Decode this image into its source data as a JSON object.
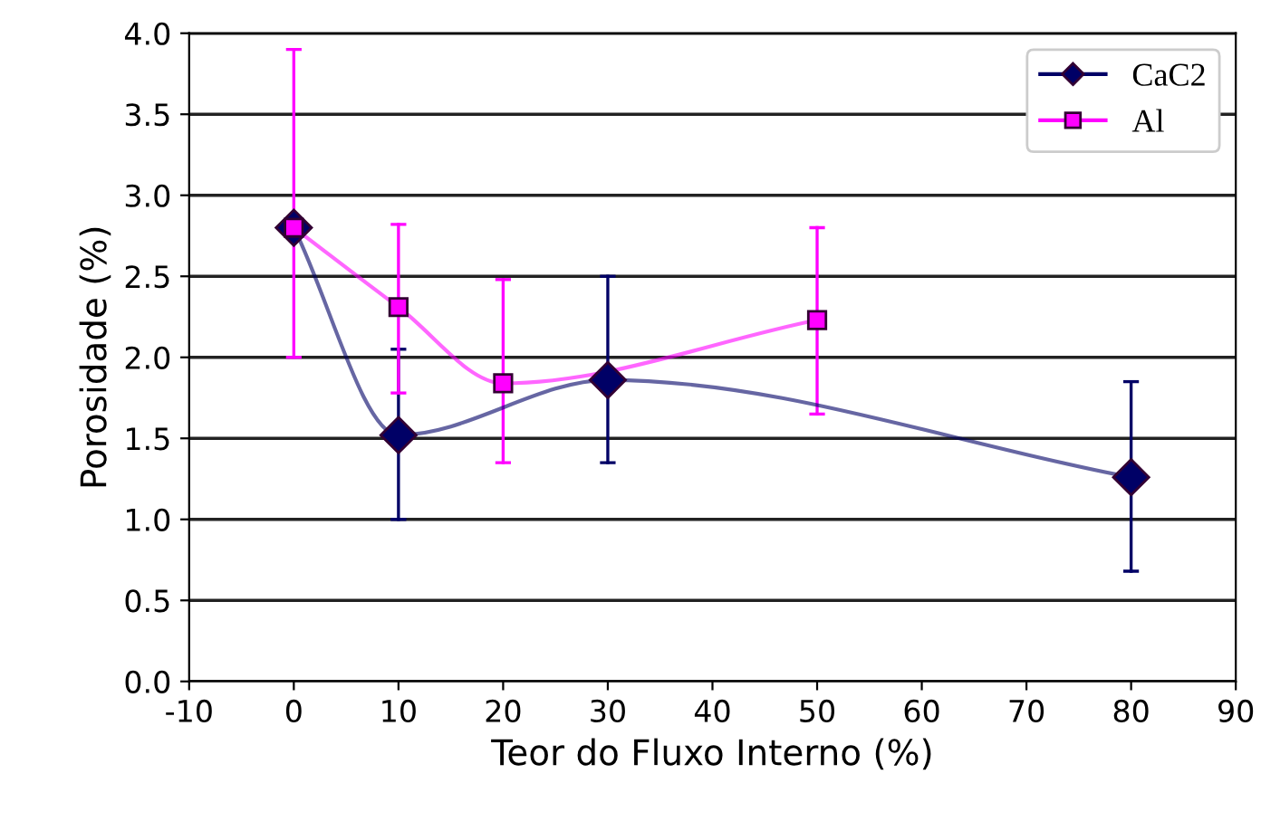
{
  "chart_data": {
    "type": "line",
    "xlabel": "Teor do Fluxo Interno (%)",
    "ylabel": "Porosidade (%)",
    "xlim": [
      -10,
      90
    ],
    "xticks": [
      -10,
      0,
      10,
      20,
      30,
      40,
      50,
      60,
      70,
      80,
      90
    ],
    "ylim": [
      0,
      4
    ],
    "yticks": [
      {
        "value": 0,
        "label": "0.0"
      },
      {
        "value": 0.5,
        "label": "0.5"
      },
      {
        "value": 1,
        "label": "1.0"
      },
      {
        "value": 1.5,
        "label": "1.5"
      },
      {
        "value": 2,
        "label": "2.0"
      },
      {
        "value": 2.5,
        "label": "2.5"
      },
      {
        "value": 3,
        "label": "3.0"
      },
      {
        "value": 3.5,
        "label": "3.5"
      },
      {
        "value": 4,
        "label": "4.0"
      }
    ],
    "grid": "y",
    "legend": "top right",
    "series": [
      {
        "name": "CaC2",
        "color": "#000066",
        "marker": "diamond",
        "x": [
          0,
          10,
          30,
          80
        ],
        "values": [
          2.8,
          1.52,
          1.86,
          1.26
        ],
        "errors": [
          null,
          [
            1.0,
            2.05
          ],
          [
            1.35,
            2.5
          ],
          [
            0.68,
            1.85
          ]
        ]
      },
      {
        "name": "Al",
        "color": "#ff00ff",
        "marker": "square",
        "x": [
          0,
          10,
          20,
          50
        ],
        "values": [
          2.8,
          2.31,
          1.84,
          2.23
        ],
        "errors": [
          [
            2.0,
            3.9
          ],
          [
            1.78,
            2.82
          ],
          [
            1.35,
            2.48
          ],
          [
            1.65,
            2.8
          ]
        ]
      }
    ]
  }
}
